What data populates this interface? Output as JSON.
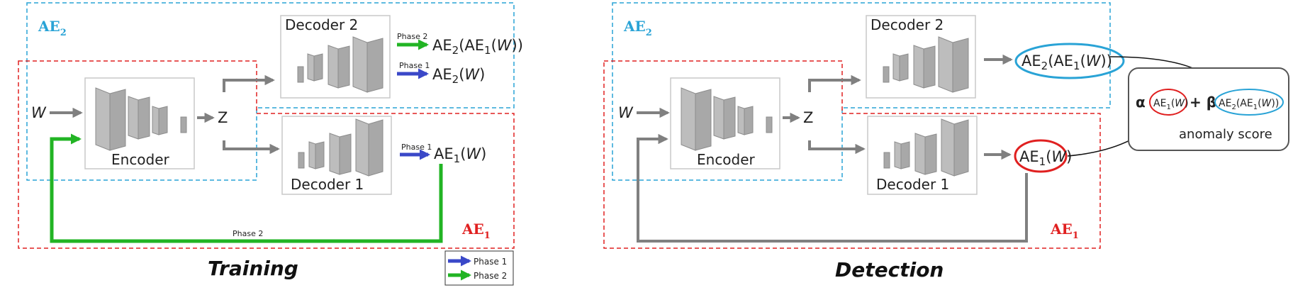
{
  "colors": {
    "ae1_border": "#e02020",
    "ae2_border": "#29a3d6",
    "phase1_arrow": "#3a48c8",
    "phase2_arrow": "#22b424",
    "block_gray": "#a8a8a8",
    "arrow_gray": "#808080"
  },
  "training": {
    "caption": "Training",
    "ae2_label": "AE",
    "ae2_sub": "2",
    "ae1_label": "AE",
    "ae1_sub": "1",
    "input": "W",
    "latent": "Z",
    "encoder": "Encoder",
    "decoder2": "Decoder 2",
    "decoder1": "Decoder 1",
    "phase2_small": "Phase 2",
    "phase1_small": "Phase 1",
    "phase1_small_d1": "Phase 1",
    "phase2_feedback": "Phase 2",
    "out_ae2_ae1": {
      "a": "AE",
      "s1": "2",
      "b": "(AE",
      "s2": "1",
      "c": "(",
      "w": "W",
      "d": "))"
    },
    "out_ae2": {
      "a": "AE",
      "s1": "2",
      "b": "(",
      "w": "W",
      "c": ")"
    },
    "out_ae1": {
      "a": "AE",
      "s1": "1",
      "b": "(",
      "w": "W",
      "c": ")"
    }
  },
  "legend": {
    "phase1": "Phase 1",
    "phase2": "Phase 2"
  },
  "detection": {
    "caption": "Detection",
    "ae2_label": "AE",
    "ae2_sub": "2",
    "ae1_label": "AE",
    "ae1_sub": "1",
    "input": "W",
    "latent": "Z",
    "encoder": "Encoder",
    "decoder2": "Decoder 2",
    "decoder1": "Decoder 1",
    "out_ae2_ae1": {
      "a": "AE",
      "s1": "2",
      "b": "(AE",
      "s2": "1",
      "c": "(",
      "w": "W",
      "d": "))"
    },
    "out_ae1": {
      "a": "AE",
      "s1": "1",
      "b": "(",
      "w": "W",
      "c": ")"
    },
    "score": {
      "alpha": "α",
      "plus_beta": "+ β",
      "t1": {
        "a": "AE",
        "s1": "1",
        "b": "(",
        "w": "W",
        "c": ")"
      },
      "t2": {
        "a": "AE",
        "s1": "2",
        "b": "(AE",
        "s2": "1",
        "c": "(",
        "w": "W",
        "d": "))"
      },
      "label": "anomaly score"
    }
  }
}
